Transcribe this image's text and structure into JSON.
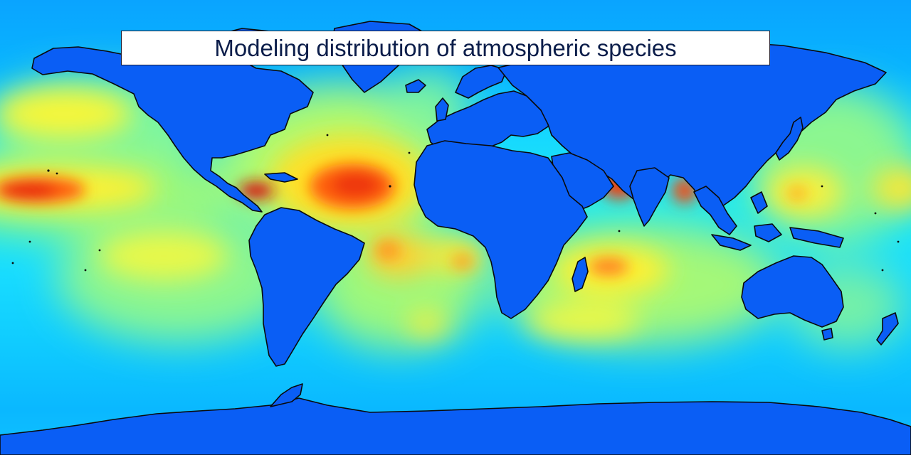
{
  "title": "Modeling distribution of atmospheric species",
  "map": {
    "projection": "equirectangular",
    "colormap": "jet",
    "colors": {
      "background_ocean": "#00aaff",
      "land": "#0a5ef5",
      "coastline": "#0a0a0a",
      "title_border": "#1a1a2e",
      "title_text": "#0b1d4a"
    }
  }
}
